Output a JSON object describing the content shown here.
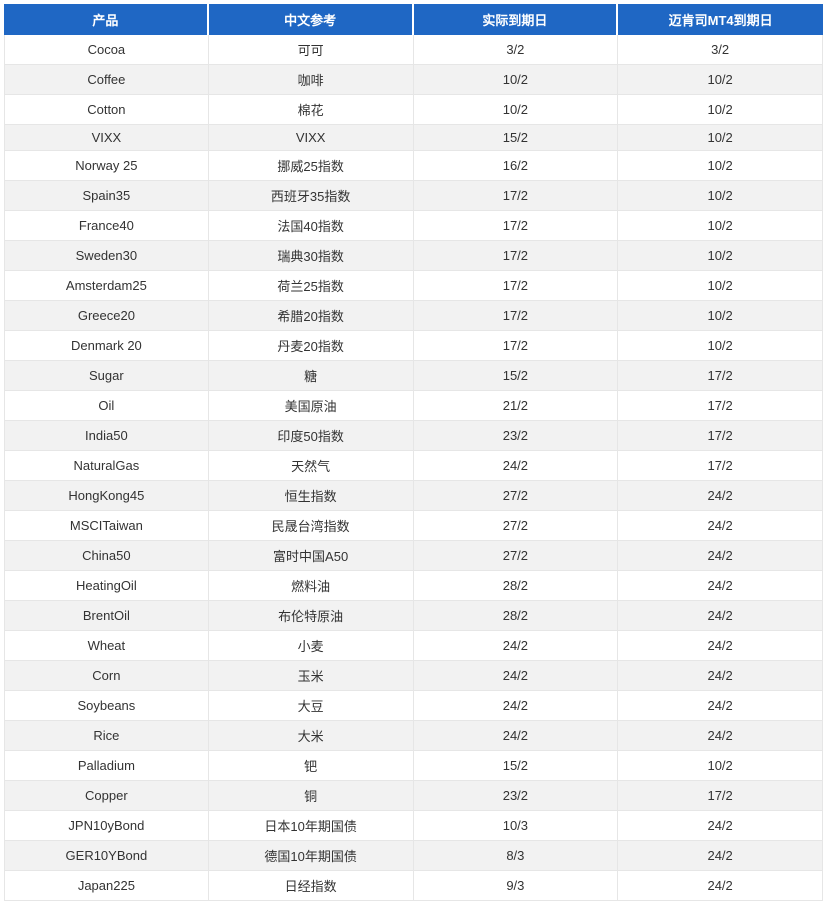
{
  "table": {
    "header_bg": "#1f67c4",
    "header_fg": "#ffffff",
    "row_odd_bg": "#ffffff",
    "row_even_bg": "#f2f2f2",
    "cell_border": "#e6e6e6",
    "text_color": "#333333",
    "font_size": 13,
    "columns": [
      {
        "key": "product",
        "label": "产品"
      },
      {
        "key": "cn_ref",
        "label": "中文参考"
      },
      {
        "key": "actual_exp",
        "label": "实际到期日"
      },
      {
        "key": "mt4_exp",
        "label": "迈肯司MT4到期日"
      }
    ],
    "rows": [
      {
        "product": "Cocoa",
        "cn_ref": "可可",
        "actual_exp": "3/2",
        "mt4_exp": "3/2"
      },
      {
        "product": "Coffee",
        "cn_ref": "咖啡",
        "actual_exp": "10/2",
        "mt4_exp": "10/2"
      },
      {
        "product": "Cotton",
        "cn_ref": "棉花",
        "actual_exp": "10/2",
        "mt4_exp": "10/2"
      },
      {
        "product": "VIXX",
        "cn_ref": "VIXX",
        "actual_exp": "15/2",
        "mt4_exp": "10/2"
      },
      {
        "product": "Norway 25",
        "cn_ref": "挪威25指数",
        "actual_exp": "16/2",
        "mt4_exp": "10/2"
      },
      {
        "product": "Spain35",
        "cn_ref": "西班牙35指数",
        "actual_exp": "17/2",
        "mt4_exp": "10/2"
      },
      {
        "product": "France40",
        "cn_ref": "法国40指数",
        "actual_exp": "17/2",
        "mt4_exp": "10/2"
      },
      {
        "product": "Sweden30",
        "cn_ref": "瑞典30指数",
        "actual_exp": "17/2",
        "mt4_exp": "10/2"
      },
      {
        "product": "Amsterdam25",
        "cn_ref": "荷兰25指数",
        "actual_exp": "17/2",
        "mt4_exp": "10/2"
      },
      {
        "product": "Greece20",
        "cn_ref": "希腊20指数",
        "actual_exp": "17/2",
        "mt4_exp": "10/2"
      },
      {
        "product": "Denmark 20",
        "cn_ref": "丹麦20指数",
        "actual_exp": "17/2",
        "mt4_exp": "10/2"
      },
      {
        "product": "Sugar",
        "cn_ref": "糖",
        "actual_exp": "15/2",
        "mt4_exp": "17/2"
      },
      {
        "product": "Oil",
        "cn_ref": "美国原油",
        "actual_exp": "21/2",
        "mt4_exp": "17/2"
      },
      {
        "product": "India50",
        "cn_ref": "印度50指数",
        "actual_exp": "23/2",
        "mt4_exp": "17/2"
      },
      {
        "product": "NaturalGas",
        "cn_ref": "天然气",
        "actual_exp": "24/2",
        "mt4_exp": "17/2"
      },
      {
        "product": "HongKong45",
        "cn_ref": "恒生指数",
        "actual_exp": "27/2",
        "mt4_exp": "24/2"
      },
      {
        "product": "MSCITaiwan",
        "cn_ref": "民晟台湾指数",
        "actual_exp": "27/2",
        "mt4_exp": "24/2"
      },
      {
        "product": "China50",
        "cn_ref": "富时中国A50",
        "actual_exp": "27/2",
        "mt4_exp": "24/2"
      },
      {
        "product": "HeatingOil",
        "cn_ref": "燃料油",
        "actual_exp": "28/2",
        "mt4_exp": "24/2"
      },
      {
        "product": "BrentOil",
        "cn_ref": "布伦特原油",
        "actual_exp": "28/2",
        "mt4_exp": "24/2"
      },
      {
        "product": "Wheat",
        "cn_ref": "小麦",
        "actual_exp": "24/2",
        "mt4_exp": "24/2"
      },
      {
        "product": "Corn",
        "cn_ref": "玉米",
        "actual_exp": "24/2",
        "mt4_exp": "24/2"
      },
      {
        "product": "Soybeans",
        "cn_ref": "大豆",
        "actual_exp": "24/2",
        "mt4_exp": "24/2"
      },
      {
        "product": "Rice",
        "cn_ref": "大米",
        "actual_exp": "24/2",
        "mt4_exp": "24/2"
      },
      {
        "product": "Palladium",
        "cn_ref": "钯",
        "actual_exp": "15/2",
        "mt4_exp": "10/2"
      },
      {
        "product": "Copper",
        "cn_ref": "铜",
        "actual_exp": "23/2",
        "mt4_exp": "17/2"
      },
      {
        "product": "JPN10yBond",
        "cn_ref": "日本10年期国债",
        "actual_exp": "10/3",
        "mt4_exp": "24/2"
      },
      {
        "product": "GER10YBond",
        "cn_ref": "德国10年期国债",
        "actual_exp": "8/3",
        "mt4_exp": "24/2"
      },
      {
        "product": "Japan225",
        "cn_ref": "日经指数",
        "actual_exp": "9/3",
        "mt4_exp": "24/2"
      }
    ]
  }
}
